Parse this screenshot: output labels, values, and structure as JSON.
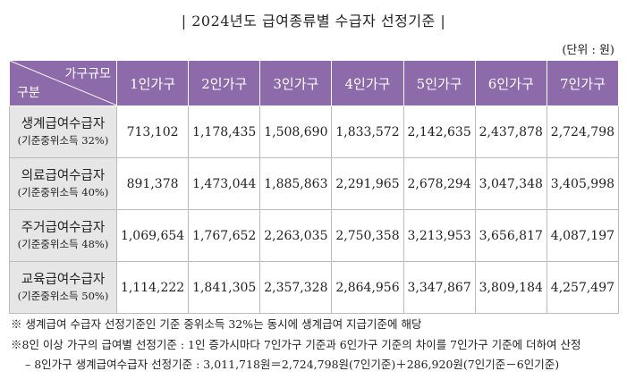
{
  "title": "| 2024년도 급여종류별 수급자 선정기준 |",
  "unit": "(단위 : 원)",
  "table": {
    "corner": {
      "top": "가구규모",
      "bottom": "구분"
    },
    "columns": [
      "1인가구",
      "2인가구",
      "3인가구",
      "4인가구",
      "5인가구",
      "6인가구",
      "7인가구"
    ],
    "rows": [
      {
        "label": "생계급여수급자",
        "sublabel": "(기준중위소득 32%)",
        "values": [
          "713,102",
          "1,178,435",
          "1,508,690",
          "1,833,572",
          "2,142,635",
          "2,437,878",
          "2,724,798"
        ]
      },
      {
        "label": "의료급여수급자",
        "sublabel": "(기준중위소득 40%)",
        "values": [
          "891,378",
          "1,473,044",
          "1,885,863",
          "2,291,965",
          "2,678,294",
          "3,047,348",
          "3,405,998"
        ]
      },
      {
        "label": "주거급여수급자",
        "sublabel": "(기준중위소득 48%)",
        "values": [
          "1,069,654",
          "1,767,652",
          "2,263,035",
          "2,750,358",
          "3,213,953",
          "3,656,817",
          "4,087,197"
        ]
      },
      {
        "label": "교육급여수급자",
        "sublabel": "(기준중위소득 50%)",
        "values": [
          "1,114,222",
          "1,841,305",
          "2,357,328",
          "2,864,956",
          "3,347,867",
          "3,809,184",
          "4,257,497"
        ]
      }
    ]
  },
  "notes": [
    "※ 생계급여 수급자 선정기준인 기준 중위소득 32%는 동시에 생계급여 지급기준에 해당",
    "※8인 이상 가구의 급여별 선정기준 : 1인 증가시마다 7인가구 기준과 6인가구 기준의 차이를 7인가구 기준에 더하여 산정",
    "– 8인가구 생계급여수급자 선정기준 : 3,011,718원＝2,724,798원(7인기준)＋286,920원(7인기준－6인기준)"
  ]
}
